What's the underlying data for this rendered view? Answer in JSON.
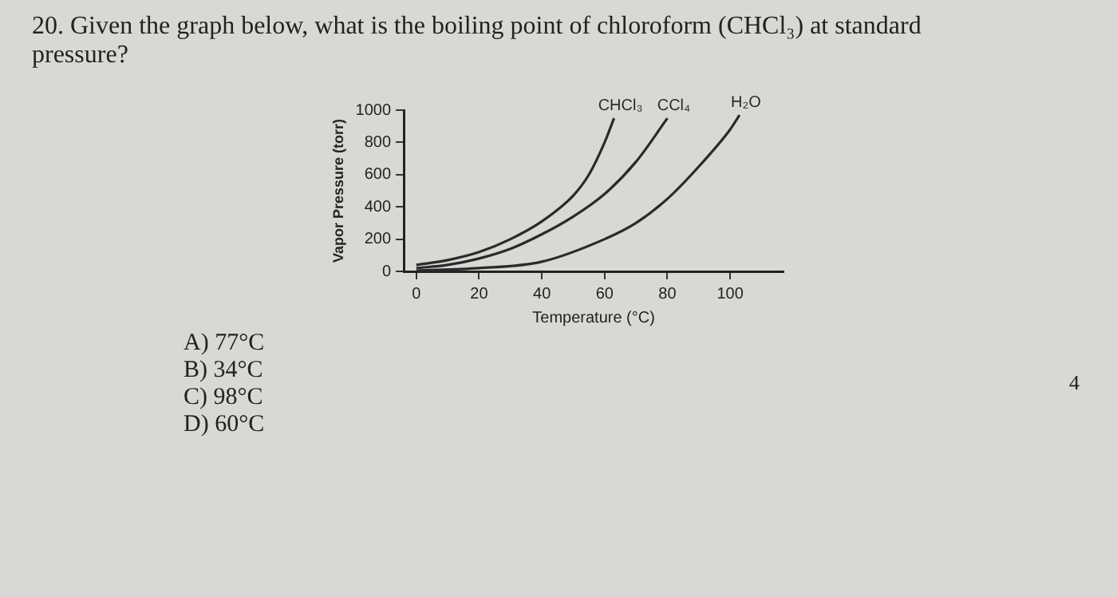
{
  "chart_data": {
    "type": "line",
    "title": "20. Given the graph below, what is the boiling point of chloroform (CHCl₃) at standard pressure?",
    "xlabel": "Temperature (°C)",
    "ylabel": "Vapor Pressure (torr)",
    "series": [
      {
        "name": "CHCl₃",
        "color": "#2a2a2a",
        "x": [
          0,
          10,
          20,
          30,
          40,
          50,
          55,
          60,
          63
        ],
        "values": [
          40,
          70,
          120,
          200,
          310,
          470,
          600,
          800,
          950
        ]
      },
      {
        "name": "CCl₄",
        "color": "#2a2a2a",
        "x": [
          0,
          10,
          20,
          30,
          40,
          50,
          60,
          70,
          80
        ],
        "values": [
          20,
          40,
          80,
          140,
          230,
          340,
          480,
          680,
          950
        ]
      },
      {
        "name": "H₂O",
        "color": "#2a2a2a",
        "x": [
          0,
          20,
          40,
          60,
          70,
          80,
          90,
          100,
          103
        ],
        "values": [
          5,
          20,
          60,
          200,
          300,
          450,
          650,
          880,
          970
        ]
      }
    ],
    "xlim": [
      -4,
      117
    ],
    "xticks": [
      0,
      20,
      40,
      60,
      80,
      100
    ],
    "ylim": [
      0,
      1000
    ],
    "yticks": [
      0,
      200,
      400,
      600,
      800,
      1000
    ],
    "grid": false,
    "legend": false,
    "marker": "none",
    "line_style": "solid",
    "annotations": [
      "A) 77°C",
      "B) 34°C",
      "C) 98°C",
      "D) 60°C",
      "4"
    ]
  }
}
